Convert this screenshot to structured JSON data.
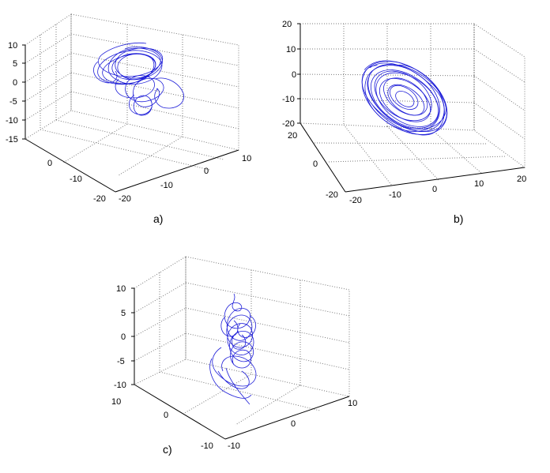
{
  "chart_data": [
    {
      "type": "line",
      "panel_label": "a)",
      "projection": "3d",
      "x_ticks": [
        "-20",
        "-10",
        "0"
      ],
      "y_ticks": [
        "-20",
        "-10",
        "0",
        "10"
      ],
      "z_ticks": [
        "-15",
        "-10",
        "-5",
        "0",
        "5",
        "10"
      ],
      "xlim": [
        -20,
        10
      ],
      "ylim": [
        -20,
        10
      ],
      "zlim": [
        -15,
        10
      ],
      "grid": true,
      "line_color": "#1e1ed8"
    },
    {
      "type": "line",
      "panel_label": "b)",
      "projection": "3d",
      "x_ticks": [
        "20",
        "0",
        "-20"
      ],
      "y_ticks": [
        "-20",
        "-10",
        "0",
        "10",
        "20"
      ],
      "z_ticks": [
        "-20",
        "-10",
        "0",
        "10",
        "20"
      ],
      "xlim": [
        -20,
        20
      ],
      "ylim": [
        -20,
        20
      ],
      "zlim": [
        -20,
        20
      ],
      "grid": true,
      "line_color": "#1e1ed8"
    },
    {
      "type": "line",
      "panel_label": "c)",
      "projection": "3d",
      "x_ticks": [
        "-10",
        "0"
      ],
      "y_ticks": [
        "-10",
        "0",
        "10"
      ],
      "z_ticks": [
        "-10",
        "-5",
        "0",
        "5",
        "10"
      ],
      "xlim": [
        -10,
        10
      ],
      "ylim": [
        -10,
        10
      ],
      "zlim": [
        -10,
        10
      ],
      "grid": true,
      "line_color": "#1e1ed8"
    }
  ]
}
